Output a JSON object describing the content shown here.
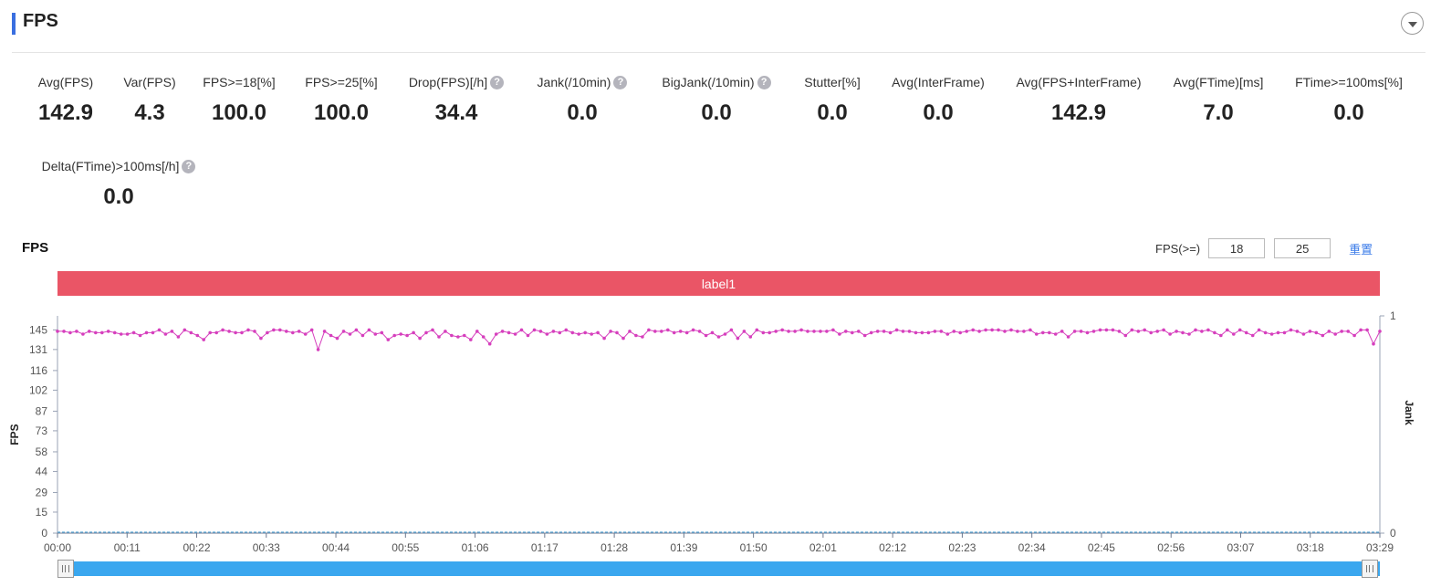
{
  "header": {
    "title": "FPS",
    "collapse_icon": "chevron-down-icon"
  },
  "metrics": [
    {
      "label": "Avg(FPS)",
      "value": "142.9",
      "help": false
    },
    {
      "label": "Var(FPS)",
      "value": "4.3",
      "help": false
    },
    {
      "label": "FPS>=18[%]",
      "value": "100.0",
      "help": false
    },
    {
      "label": "FPS>=25[%]",
      "value": "100.0",
      "help": false
    },
    {
      "label": "Drop(FPS)[/h]",
      "value": "34.4",
      "help": true
    },
    {
      "label": "Jank(/10min)",
      "value": "0.0",
      "help": true
    },
    {
      "label": "BigJank(/10min)",
      "value": "0.0",
      "help": true
    },
    {
      "label": "Stutter[%]",
      "value": "0.0",
      "help": false
    },
    {
      "label": "Avg(InterFrame)",
      "value": "0.0",
      "help": false
    },
    {
      "label": "Avg(FPS+InterFrame)",
      "value": "142.9",
      "help": false
    },
    {
      "label": "Avg(FTime)[ms]",
      "value": "7.0",
      "help": false
    },
    {
      "label": "FTime>=100ms[%]",
      "value": "0.0",
      "help": false
    },
    {
      "label": "Delta(FTime)>100ms[/h]",
      "value": "0.0",
      "help": true
    }
  ],
  "help_glyph": "?",
  "chart_section": {
    "title": "FPS",
    "filter_label": "FPS(>=)",
    "threshold_1": "18",
    "threshold_2": "25",
    "reset_label": "重置",
    "label_band": "label1"
  },
  "slider": {
    "start": 0.0,
    "end": 1.0
  },
  "colors": {
    "accent": "#3a6fe0",
    "series": "#d63fbd",
    "jank": "#5aa9d8",
    "label_band": "#ea5566",
    "slider": "#3aa7ef"
  },
  "chart_data": {
    "type": "line",
    "title": "",
    "xlabel": "",
    "ylabel": "FPS",
    "y2label": "Jank",
    "ylim": [
      0,
      155
    ],
    "y2lim": [
      0,
      1
    ],
    "yticks": [
      "0",
      "15",
      "29",
      "44",
      "58",
      "73",
      "87",
      "102",
      "116",
      "131",
      "145"
    ],
    "y2ticks": [
      "0",
      "1"
    ],
    "xticks": [
      "00:00",
      "00:11",
      "00:22",
      "00:33",
      "00:44",
      "00:55",
      "01:06",
      "01:17",
      "01:28",
      "01:39",
      "01:50",
      "02:01",
      "02:12",
      "02:23",
      "02:34",
      "02:45",
      "02:56",
      "03:07",
      "03:18",
      "03:29"
    ],
    "x_range_seconds": [
      0,
      209
    ],
    "series": [
      {
        "name": "FPS",
        "axis": "left",
        "values": [
          144,
          144,
          143,
          144,
          142,
          144,
          143,
          143,
          144,
          143,
          142,
          142,
          143,
          141,
          143,
          143,
          145,
          142,
          144,
          140,
          145,
          143,
          141,
          138,
          143,
          143,
          145,
          144,
          143,
          143,
          145,
          144,
          139,
          143,
          145,
          145,
          144,
          143,
          144,
          142,
          145,
          131,
          144,
          141,
          139,
          144,
          142,
          145,
          141,
          145,
          142,
          143,
          138,
          141,
          142,
          141,
          143,
          139,
          143,
          145,
          140,
          144,
          141,
          140,
          141,
          138,
          144,
          140,
          135,
          142,
          144,
          143,
          142,
          145,
          141,
          145,
          144,
          142,
          144,
          143,
          145,
          143,
          142,
          143,
          142,
          143,
          139,
          144,
          143,
          139,
          144,
          141,
          140,
          145,
          144,
          144,
          145,
          143,
          144,
          143,
          145,
          144,
          141,
          143,
          140,
          142,
          145,
          139,
          144,
          140,
          145,
          143,
          143,
          144,
          145,
          144,
          144,
          145,
          144,
          144,
          144,
          144,
          145,
          142,
          144,
          143,
          144,
          141,
          143,
          144,
          144,
          143,
          145,
          144,
          144,
          143,
          143,
          143,
          144,
          144,
          142,
          144,
          143,
          144,
          145,
          144,
          145,
          145,
          145,
          144,
          145,
          144,
          144,
          145,
          142,
          143,
          143,
          142,
          144,
          140,
          144,
          144,
          143,
          144,
          145,
          145,
          145,
          144,
          141,
          145,
          144,
          145,
          143,
          144,
          145,
          142,
          144,
          143,
          142,
          145,
          144,
          145,
          143,
          141,
          145,
          142,
          145,
          143,
          141,
          145,
          143,
          142,
          143,
          143,
          145,
          144,
          142,
          144,
          143,
          141,
          144,
          142,
          144,
          144,
          141,
          145,
          145,
          135,
          144
        ]
      },
      {
        "name": "Jank",
        "axis": "right",
        "values": [
          0,
          0
        ]
      }
    ]
  }
}
